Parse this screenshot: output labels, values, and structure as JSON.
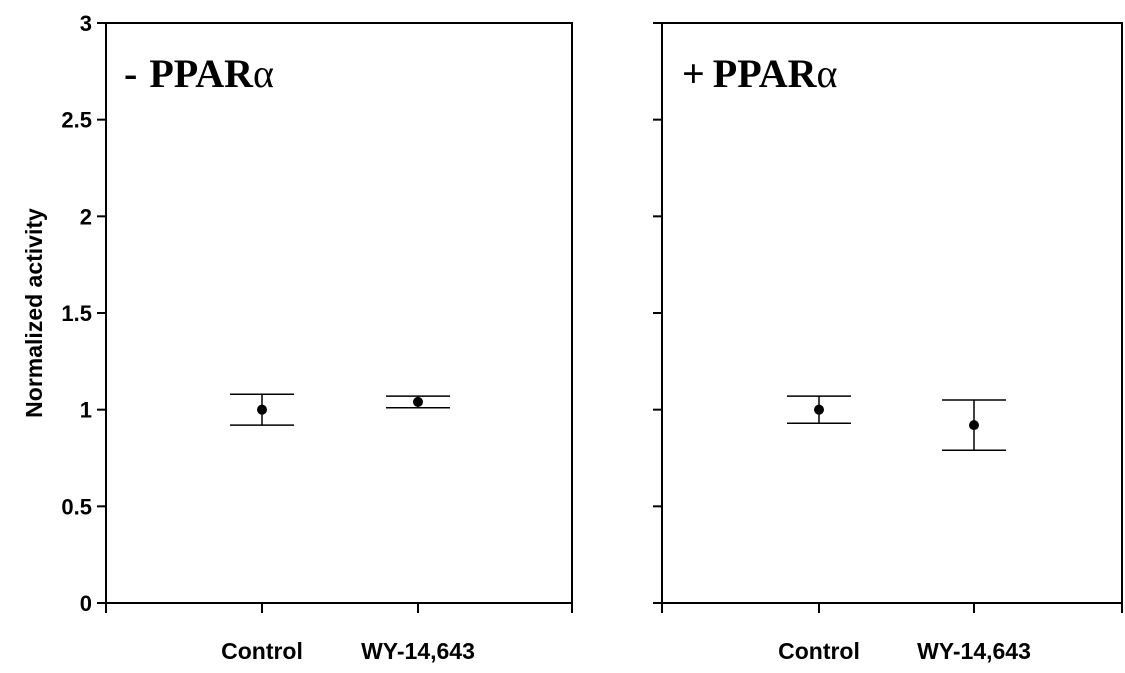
{
  "chart_data": [
    {
      "type": "scatter",
      "title_sign": "-",
      "title_text": "PPAR",
      "title_greek": "α",
      "ylabel": "Normalized activity",
      "ylim": [
        0,
        3
      ],
      "yticks": [
        "0",
        "0.5",
        "1",
        "1.5",
        "2",
        "2.5",
        "3"
      ],
      "categories": [
        "Control",
        "WY-14,643"
      ],
      "points": [
        {
          "category": "Control",
          "y": 1.0,
          "err_low": 0.92,
          "err_high": 1.08
        },
        {
          "category": "WY-14,643",
          "y": 1.04,
          "err_low": 1.01,
          "err_high": 1.07
        }
      ]
    },
    {
      "type": "scatter",
      "title_sign": "+",
      "title_text": "PPAR",
      "title_greek": "α",
      "ylim": [
        0,
        3
      ],
      "categories": [
        "Control",
        "WY-14,643"
      ],
      "points": [
        {
          "category": "Control",
          "y": 1.0,
          "err_low": 0.93,
          "err_high": 1.07
        },
        {
          "category": "WY-14,643",
          "y": 0.92,
          "err_low": 0.79,
          "err_high": 1.05
        }
      ]
    }
  ],
  "colors": {
    "ink": "#000000",
    "background": "#ffffff"
  }
}
